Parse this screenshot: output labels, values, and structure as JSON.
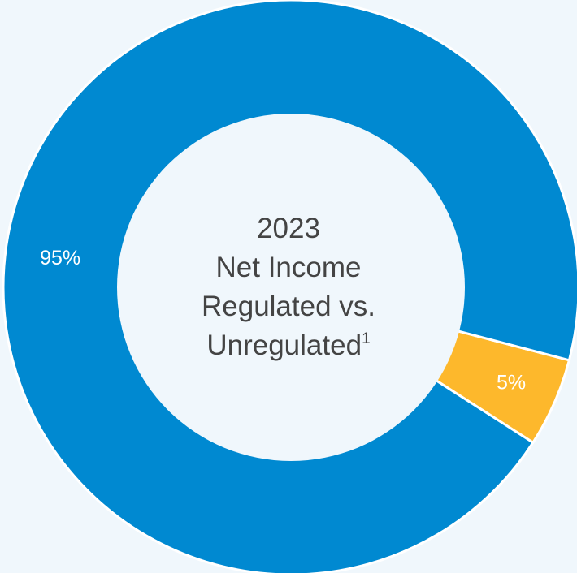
{
  "chart_data": {
    "type": "pie",
    "donut": true,
    "slices": [
      {
        "label": "95%",
        "value": 95,
        "color": "#0089d1"
      },
      {
        "label": "5%",
        "value": 5,
        "color": "#fdb82c"
      }
    ],
    "center_text": {
      "year": "2023",
      "line1": "Net Income",
      "line2": "Regulated vs.",
      "line3": "Unregulated",
      "footnote": "1"
    },
    "background_color": "#f0f7fc",
    "separator_color": "#ffffff",
    "legend": "none"
  }
}
